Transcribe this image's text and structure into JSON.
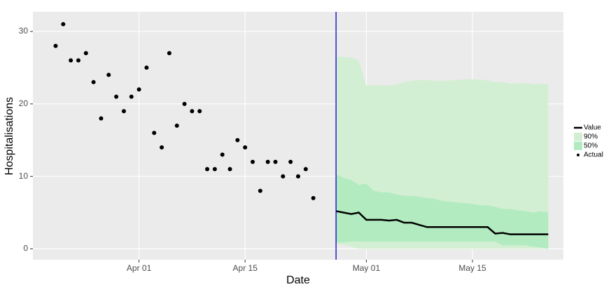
{
  "chart_data": {
    "type": "forecast",
    "x_label": "Date",
    "y_label": "Hospitalisations",
    "xlim": [
      "Mar 18",
      "May 27"
    ],
    "xticks": [
      "Apr 01",
      "Apr 15",
      "May 01",
      "May 15"
    ],
    "ylim": [
      -1.5,
      32.7
    ],
    "yticks": [
      0,
      10,
      20,
      30
    ],
    "grid": true,
    "legend": "right",
    "vline": "Apr 27",
    "vline_color": "#0000cc",
    "series": [
      {
        "name": "Value",
        "kind": "line",
        "color": "#000000",
        "x": [
          "Apr 27",
          "Apr 28",
          "Apr 29",
          "Apr 30",
          "May 01",
          "May 02",
          "May 03",
          "May 04",
          "May 05",
          "May 06",
          "May 07",
          "May 08",
          "May 09",
          "May 10",
          "May 11",
          "May 12",
          "May 13",
          "May 14",
          "May 15",
          "May 16",
          "May 17",
          "May 18",
          "May 19",
          "May 20",
          "May 21",
          "May 22",
          "May 23",
          "May 24",
          "May 25"
        ],
        "values": [
          5.2,
          5.0,
          4.8,
          5.0,
          4.0,
          4.0,
          4.0,
          3.9,
          4.0,
          3.6,
          3.6,
          3.3,
          3.0,
          3.0,
          3.0,
          3.0,
          3.0,
          3.0,
          3.0,
          3.0,
          3.0,
          2.1,
          2.2,
          2.0,
          2.0,
          2.0,
          2.0,
          2.0,
          2.0
        ]
      },
      {
        "name": "90%",
        "kind": "band",
        "color": "#d3efd3",
        "x": [
          "Apr 27",
          "Apr 28",
          "Apr 29",
          "Apr 30",
          "May 01",
          "May 02",
          "May 03",
          "May 04",
          "May 05",
          "May 06",
          "May 07",
          "May 08",
          "May 09",
          "May 10",
          "May 11",
          "May 12",
          "May 13",
          "May 14",
          "May 15",
          "May 16",
          "May 17",
          "May 18",
          "May 19",
          "May 20",
          "May 21",
          "May 22",
          "May 23",
          "May 24",
          "May 25"
        ],
        "lower": [
          0.7,
          0.5,
          0.3,
          0,
          0,
          0,
          0,
          0,
          0,
          0,
          0,
          0,
          0,
          0,
          0,
          0,
          0,
          0,
          0,
          0,
          0,
          0,
          0,
          0,
          0,
          0,
          0,
          0,
          0
        ],
        "upper": [
          26.5,
          26.5,
          26.4,
          26.0,
          22.5,
          22.6,
          22.6,
          22.5,
          22.7,
          23.0,
          23.2,
          23.3,
          23.3,
          23.2,
          23.2,
          23.2,
          23.3,
          23.4,
          23.4,
          23.3,
          23.3,
          23.0,
          23.0,
          22.8,
          22.8,
          22.9,
          22.7,
          22.8,
          22.7
        ]
      },
      {
        "name": "50%",
        "kind": "band",
        "color": "#b2ebbf",
        "x": [
          "Apr 27",
          "Apr 28",
          "Apr 29",
          "Apr 30",
          "May 01",
          "May 02",
          "May 03",
          "May 04",
          "May 05",
          "May 06",
          "May 07",
          "May 08",
          "May 09",
          "May 10",
          "May 11",
          "May 12",
          "May 13",
          "May 14",
          "May 15",
          "May 16",
          "May 17",
          "May 18",
          "May 19",
          "May 20",
          "May 21",
          "May 22",
          "May 23",
          "May 24",
          "May 25"
        ],
        "lower": [
          0.9,
          0.9,
          1.0,
          1.0,
          1.0,
          1.0,
          1.0,
          1.0,
          1.0,
          1.0,
          1.0,
          1.0,
          1.0,
          1.0,
          1.0,
          1.0,
          1.0,
          1.0,
          1.0,
          1.0,
          1.0,
          1.0,
          0.5,
          0.5,
          0.5,
          0.5,
          0.3,
          0.2,
          0
        ],
        "upper": [
          10.3,
          9.8,
          9.5,
          8.8,
          9.0,
          8.0,
          7.8,
          7.8,
          7.5,
          7.3,
          7.3,
          7.2,
          7.0,
          6.9,
          6.6,
          6.5,
          6.4,
          6.3,
          6.2,
          6.0,
          6.0,
          5.8,
          5.5,
          5.5,
          5.3,
          5.2,
          5.0,
          5.2,
          5.0
        ]
      },
      {
        "name": "Actual",
        "kind": "points",
        "color": "#000000",
        "x": [
          "Mar 21",
          "Mar 22",
          "Mar 23",
          "Mar 24",
          "Mar 25",
          "Mar 26",
          "Mar 27",
          "Mar 28",
          "Mar 29",
          "Mar 30",
          "Mar 31",
          "Apr 01",
          "Apr 02",
          "Apr 03",
          "Apr 04",
          "Apr 05",
          "Apr 06",
          "Apr 07",
          "Apr 08",
          "Apr 09",
          "Apr 10",
          "Apr 11",
          "Apr 12",
          "Apr 13",
          "Apr 14",
          "Apr 15",
          "Apr 16",
          "Apr 17",
          "Apr 18",
          "Apr 19",
          "Apr 20",
          "Apr 21",
          "Apr 22",
          "Apr 23",
          "Apr 24"
        ],
        "values": [
          28,
          31,
          26,
          26,
          27,
          23,
          18,
          24,
          21,
          19,
          21,
          22,
          25,
          16,
          14,
          27,
          17,
          20,
          19,
          19,
          11,
          11,
          13,
          11,
          15,
          14,
          12,
          8,
          12,
          12,
          10,
          12,
          10,
          11,
          7
        ]
      }
    ]
  }
}
